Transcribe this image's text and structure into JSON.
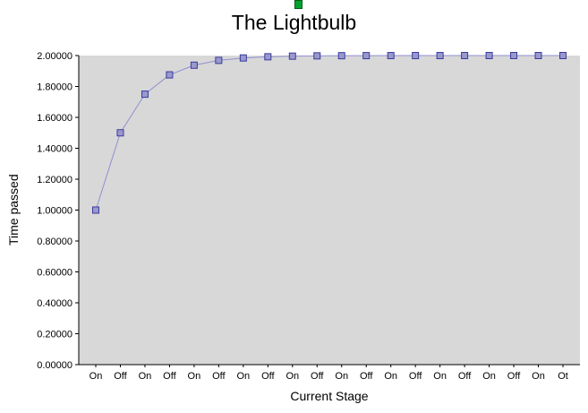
{
  "chart_data": {
    "type": "line",
    "title": "The Lightbulb",
    "xlabel": "Current Stage",
    "ylabel": "Time passed",
    "categories": [
      "On",
      "Off",
      "On",
      "Off",
      "On",
      "Off",
      "On",
      "Off",
      "On",
      "Off",
      "On",
      "Off",
      "On",
      "Off",
      "On",
      "Off",
      "On",
      "Off",
      "On",
      "Ot"
    ],
    "values": [
      1.0,
      1.5,
      1.75,
      1.875,
      1.9375,
      1.96875,
      1.984375,
      1.9921875,
      1.99609375,
      1.99804688,
      1.99902344,
      1.99951172,
      1.99975586,
      1.99987793,
      1.99993896,
      1.99996948,
      1.99998474,
      1.99999237,
      1.99999619,
      1.99999809
    ],
    "ylim": [
      0,
      2.0
    ],
    "ytick_step": 0.2,
    "ytick_decimals": 5,
    "grid": false,
    "legend": "none",
    "plot_bg": "#d8d8d8",
    "line_color": "#9090d0",
    "marker_fill": "#9999cc",
    "marker_stroke": "#3a3a9e",
    "axis_color": "#000000"
  },
  "decorations": {
    "green_square_color": "#00a32e"
  }
}
